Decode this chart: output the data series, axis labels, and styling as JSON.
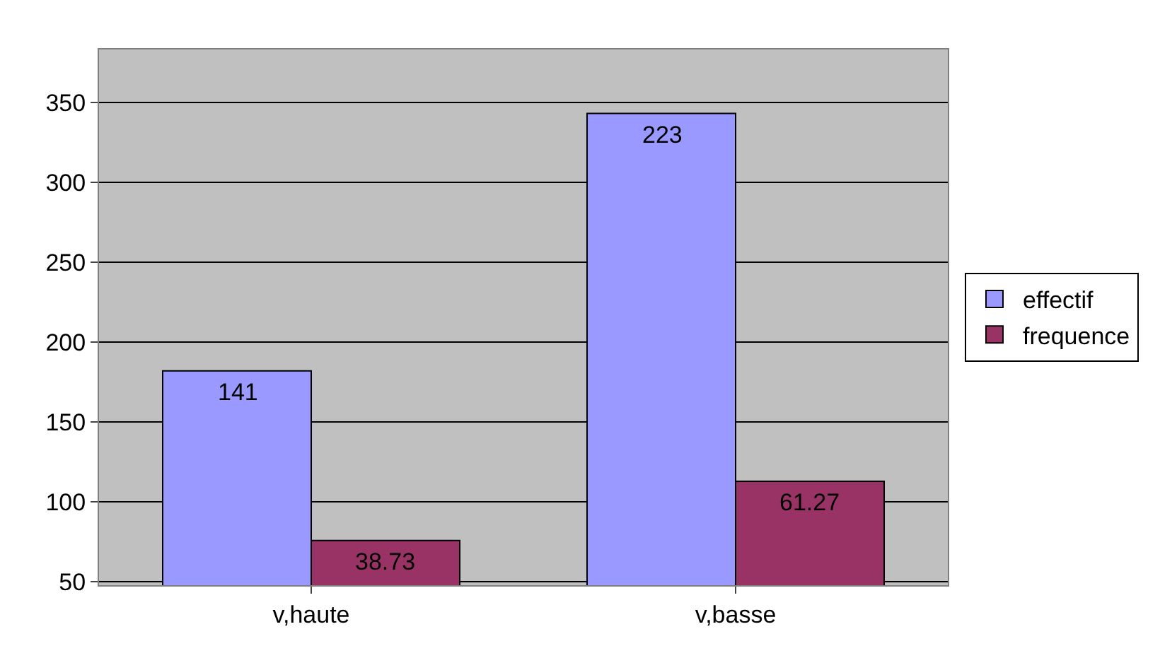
{
  "chart_data": {
    "type": "bar",
    "categories": [
      "v,haute",
      "v,basse"
    ],
    "series": [
      {
        "name": "effectif",
        "color": "#9999ff",
        "values": [
          182,
          343
        ]
      },
      {
        "name": "frequence",
        "color": "#993366",
        "values": [
          76,
          113
        ]
      }
    ],
    "annotations": [
      {
        "text": "141",
        "x": "v,haute",
        "y": 182
      },
      {
        "text": "223",
        "x": "v,basse",
        "y": 343
      },
      {
        "text": "38.73",
        "x": "v,haute",
        "y": 76
      },
      {
        "text": "61.27",
        "x": "v,basse",
        "y": 113
      }
    ],
    "ylim": [
      48,
      383
    ],
    "yticks": [
      50,
      100,
      150,
      200,
      250,
      300,
      350
    ],
    "grid": "y",
    "legend": "right"
  }
}
